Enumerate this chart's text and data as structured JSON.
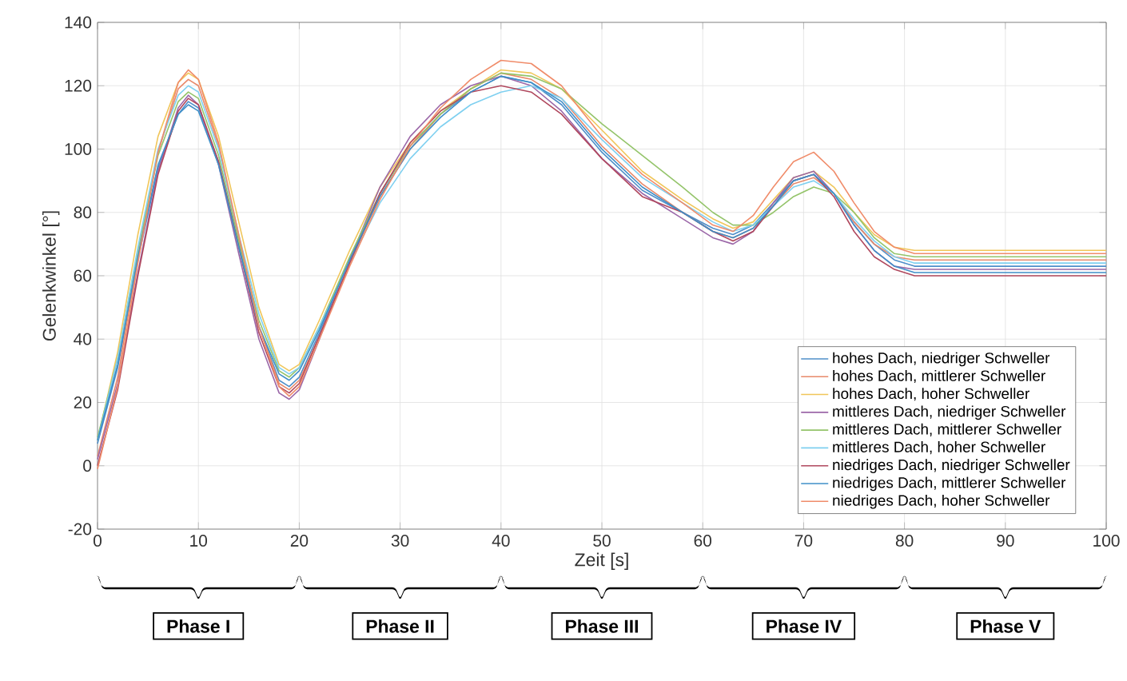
{
  "chart_data": {
    "type": "line",
    "xlabel": "Zeit [s]",
    "ylabel": "Gelenkwinkel [°]",
    "x": [
      0,
      2,
      4,
      6,
      8,
      9,
      10,
      12,
      14,
      16,
      18,
      19,
      20,
      22,
      25,
      28,
      31,
      34,
      37,
      40,
      43,
      46,
      50,
      54,
      58,
      61,
      63,
      65,
      67,
      69,
      71,
      73,
      75,
      77,
      79,
      81,
      85,
      90,
      100
    ],
    "series": [
      {
        "name": "hohes Dach, niedriger Schweller",
        "color": "#4f8fc9",
        "values": [
          7,
          31,
          65,
          94,
          111,
          115,
          113,
          96,
          70,
          44,
          27,
          25,
          28,
          42,
          65,
          86,
          101,
          111,
          118,
          123,
          121,
          114,
          99,
          87,
          80,
          75,
          73,
          76,
          83,
          90,
          92,
          86,
          77,
          70,
          65,
          63,
          63,
          63,
          63
        ]
      },
      {
        "name": "hohes Dach, mittlerer Schweller",
        "color": "#e8896a",
        "values": [
          3,
          28,
          66,
          99,
          119,
          122,
          120,
          101,
          72,
          44,
          26,
          24,
          27,
          41,
          64,
          85,
          100,
          111,
          119,
          124,
          122,
          116,
          101,
          89,
          80,
          74,
          72,
          75,
          82,
          89,
          91,
          86,
          77,
          70,
          66,
          65,
          65,
          65,
          65
        ]
      },
      {
        "name": "hohes Dach, hoher Schweller",
        "color": "#f0c65a",
        "values": [
          8,
          36,
          73,
          104,
          121,
          124,
          122,
          104,
          77,
          50,
          32,
          30,
          32,
          46,
          68,
          88,
          102,
          112,
          119,
          125,
          124,
          119,
          106,
          93,
          84,
          78,
          75,
          77,
          84,
          91,
          93,
          88,
          80,
          73,
          69,
          68,
          68,
          68,
          68
        ]
      },
      {
        "name": "mittleres Dach, niedriger Schweller",
        "color": "#9b67a8",
        "values": [
          2,
          26,
          61,
          93,
          113,
          117,
          114,
          95,
          67,
          40,
          23,
          21,
          24,
          40,
          65,
          88,
          104,
          114,
          120,
          123,
          120,
          112,
          97,
          86,
          78,
          72,
          70,
          74,
          83,
          91,
          93,
          86,
          76,
          68,
          63,
          62,
          62,
          62,
          62
        ]
      },
      {
        "name": "mittleres Dach, mittlerer Schweller",
        "color": "#94c46a",
        "values": [
          9,
          34,
          68,
          98,
          115,
          118,
          116,
          98,
          71,
          46,
          30,
          28,
          31,
          44,
          66,
          86,
          101,
          111,
          119,
          124,
          123,
          119,
          108,
          98,
          88,
          80,
          76,
          76,
          80,
          85,
          88,
          86,
          80,
          72,
          67,
          66,
          66,
          66,
          66
        ]
      },
      {
        "name": "mittleres Dach, hoher Schweller",
        "color": "#7fd0f0",
        "values": [
          8,
          34,
          69,
          100,
          117,
          120,
          118,
          100,
          73,
          48,
          31,
          29,
          31,
          44,
          64,
          83,
          97,
          107,
          114,
          118,
          120,
          116,
          103,
          91,
          83,
          77,
          74,
          76,
          82,
          88,
          90,
          86,
          78,
          71,
          66,
          64,
          64,
          64,
          64
        ]
      },
      {
        "name": "niedriges Dach, niedriger Schweller",
        "color": "#b0485e",
        "values": [
          0,
          24,
          60,
          92,
          112,
          116,
          114,
          96,
          69,
          42,
          25,
          23,
          26,
          41,
          64,
          86,
          102,
          112,
          118,
          120,
          118,
          111,
          97,
          85,
          80,
          74,
          71,
          74,
          82,
          90,
          92,
          85,
          74,
          66,
          62,
          60,
          60,
          60,
          60
        ]
      },
      {
        "name": "niedriges Dach, mittlerer Schweller",
        "color": "#3f8fc8",
        "values": [
          8,
          32,
          66,
          95,
          111,
          114,
          112,
          95,
          69,
          44,
          29,
          27,
          30,
          43,
          65,
          85,
          100,
          110,
          118,
          123,
          121,
          115,
          100,
          88,
          80,
          74,
          72,
          75,
          82,
          90,
          92,
          86,
          76,
          68,
          63,
          61,
          61,
          61,
          61
        ]
      },
      {
        "name": "niedriges Dach, hoher Schweller",
        "color": "#f08c6a",
        "values": [
          -1,
          25,
          64,
          99,
          121,
          125,
          122,
          102,
          73,
          44,
          25,
          22,
          25,
          40,
          63,
          84,
          101,
          113,
          122,
          128,
          127,
          120,
          104,
          92,
          83,
          76,
          74,
          79,
          88,
          96,
          99,
          93,
          83,
          74,
          69,
          67,
          67,
          67,
          67
        ]
      }
    ],
    "xlim": [
      0,
      100
    ],
    "xticks": [
      0,
      10,
      20,
      30,
      40,
      50,
      60,
      70,
      80,
      90,
      100
    ],
    "ylim": [
      -20,
      140
    ],
    "yticks": [
      -20,
      0,
      20,
      40,
      60,
      80,
      100,
      120,
      140
    ],
    "grid": true,
    "legend": "bottom right",
    "marker": "none",
    "line_style": "solid",
    "annotations": [
      "Phase I",
      "Phase II",
      "Phase III",
      "Phase IV",
      "Phase V"
    ]
  }
}
